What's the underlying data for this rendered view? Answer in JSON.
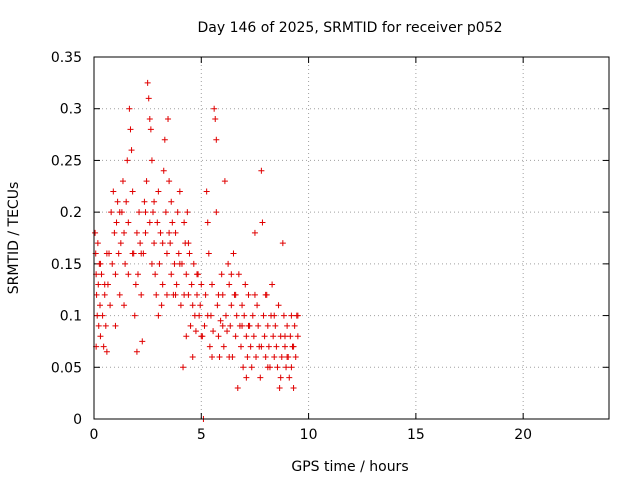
{
  "chart_data": {
    "type": "scatter",
    "title": "Day 146 of 2025, SRMTID for receiver p052",
    "xlabel": "GPS time / hours",
    "ylabel": "SRMTID / TECUs",
    "xlim": [
      0,
      24
    ],
    "ylim": [
      0,
      0.35
    ],
    "xticks": [
      0,
      5,
      10,
      15,
      20
    ],
    "yticks": [
      0,
      0.05,
      0.1,
      0.15,
      0.2,
      0.25,
      0.3,
      0.35
    ],
    "xtick_labels": [
      "0",
      "5",
      "10",
      "15",
      "20"
    ],
    "ytick_labels": [
      "0",
      "0.05",
      "0.1",
      "0.15",
      "0.2",
      "0.25",
      "0.3",
      "0.35"
    ],
    "grid": true,
    "color": "#e00000",
    "marker": "plus",
    "points": [
      [
        0.05,
        0.18
      ],
      [
        0.08,
        0.16
      ],
      [
        0.1,
        0.14
      ],
      [
        0.12,
        0.12
      ],
      [
        0.15,
        0.1
      ],
      [
        0.18,
        0.17
      ],
      [
        0.2,
        0.13
      ],
      [
        0.22,
        0.09
      ],
      [
        0.25,
        0.15
      ],
      [
        0.28,
        0.11
      ],
      [
        0.3,
        0.08
      ],
      [
        0.35,
        0.14
      ],
      [
        0.4,
        0.1
      ],
      [
        0.45,
        0.07
      ],
      [
        0.5,
        0.12
      ],
      [
        0.55,
        0.09
      ],
      [
        0.6,
        0.065
      ],
      [
        0.65,
        0.13
      ],
      [
        0.7,
        0.16
      ],
      [
        0.75,
        0.11
      ],
      [
        0.8,
        0.2
      ],
      [
        0.85,
        0.15
      ],
      [
        0.9,
        0.22
      ],
      [
        0.95,
        0.18
      ],
      [
        1.0,
        0.14
      ],
      [
        1.05,
        0.19
      ],
      [
        1.1,
        0.21
      ],
      [
        1.15,
        0.16
      ],
      [
        1.2,
        0.12
      ],
      [
        1.25,
        0.17
      ],
      [
        1.3,
        0.2
      ],
      [
        1.35,
        0.23
      ],
      [
        1.4,
        0.18
      ],
      [
        1.45,
        0.15
      ],
      [
        1.5,
        0.21
      ],
      [
        1.55,
        0.25
      ],
      [
        1.6,
        0.19
      ],
      [
        1.65,
        0.3
      ],
      [
        1.7,
        0.28
      ],
      [
        1.75,
        0.26
      ],
      [
        1.8,
        0.22
      ],
      [
        1.85,
        0.16
      ],
      [
        1.9,
        0.1
      ],
      [
        1.95,
        0.13
      ],
      [
        2.0,
        0.18
      ],
      [
        2.05,
        0.14
      ],
      [
        2.1,
        0.2
      ],
      [
        2.15,
        0.17
      ],
      [
        2.2,
        0.12
      ],
      [
        2.25,
        0.075
      ],
      [
        2.3,
        0.16
      ],
      [
        2.35,
        0.21
      ],
      [
        2.4,
        0.18
      ],
      [
        2.45,
        0.23
      ],
      [
        2.5,
        0.325
      ],
      [
        2.55,
        0.31
      ],
      [
        2.6,
        0.29
      ],
      [
        2.65,
        0.28
      ],
      [
        2.7,
        0.25
      ],
      [
        2.75,
        0.2
      ],
      [
        2.8,
        0.17
      ],
      [
        2.85,
        0.14
      ],
      [
        2.9,
        0.12
      ],
      [
        2.95,
        0.19
      ],
      [
        3.0,
        0.22
      ],
      [
        3.05,
        0.15
      ],
      [
        3.1,
        0.18
      ],
      [
        3.15,
        0.11
      ],
      [
        3.2,
        0.13
      ],
      [
        3.25,
        0.24
      ],
      [
        3.3,
        0.27
      ],
      [
        3.35,
        0.2
      ],
      [
        3.4,
        0.16
      ],
      [
        3.45,
        0.29
      ],
      [
        3.5,
        0.23
      ],
      [
        3.55,
        0.17
      ],
      [
        3.6,
        0.14
      ],
      [
        3.65,
        0.19
      ],
      [
        3.7,
        0.12
      ],
      [
        3.75,
        0.15
      ],
      [
        3.8,
        0.18
      ],
      [
        3.85,
        0.13
      ],
      [
        3.9,
        0.2
      ],
      [
        3.95,
        0.16
      ],
      [
        4.0,
        0.22
      ],
      [
        4.05,
        0.11
      ],
      [
        4.1,
        0.15
      ],
      [
        4.15,
        0.05
      ],
      [
        4.2,
        0.19
      ],
      [
        4.25,
        0.17
      ],
      [
        4.3,
        0.14
      ],
      [
        4.35,
        0.2
      ],
      [
        4.4,
        0.12
      ],
      [
        4.45,
        0.16
      ],
      [
        4.5,
        0.09
      ],
      [
        4.55,
        0.13
      ],
      [
        4.6,
        0.11
      ],
      [
        4.65,
        0.15
      ],
      [
        4.7,
        0.1
      ],
      [
        4.75,
        0.085
      ],
      [
        4.8,
        0.12
      ],
      [
        4.85,
        0.14
      ],
      [
        4.9,
        0.1
      ],
      [
        4.95,
        0.11
      ],
      [
        5.0,
        0.13
      ],
      [
        5.05,
        0.08
      ],
      [
        5.1,
        0.0
      ],
      [
        5.15,
        0.09
      ],
      [
        5.2,
        0.12
      ],
      [
        5.25,
        0.22
      ],
      [
        5.3,
        0.19
      ],
      [
        5.35,
        0.16
      ],
      [
        5.4,
        0.07
      ],
      [
        5.45,
        0.1
      ],
      [
        5.5,
        0.13
      ],
      [
        5.55,
        0.085
      ],
      [
        5.6,
        0.3
      ],
      [
        5.65,
        0.29
      ],
      [
        5.7,
        0.27
      ],
      [
        5.75,
        0.11
      ],
      [
        5.8,
        0.08
      ],
      [
        5.85,
        0.06
      ],
      [
        5.9,
        0.095
      ],
      [
        5.95,
        0.14
      ],
      [
        6.0,
        0.12
      ],
      [
        6.05,
        0.07
      ],
      [
        6.1,
        0.23
      ],
      [
        6.15,
        0.1
      ],
      [
        6.2,
        0.085
      ],
      [
        6.25,
        0.15
      ],
      [
        6.3,
        0.13
      ],
      [
        6.35,
        0.09
      ],
      [
        6.4,
        0.11
      ],
      [
        6.45,
        0.06
      ],
      [
        6.5,
        0.16
      ],
      [
        6.55,
        0.12
      ],
      [
        6.6,
        0.08
      ],
      [
        6.65,
        0.1
      ],
      [
        6.7,
        0.03
      ],
      [
        6.75,
        0.14
      ],
      [
        6.8,
        0.09
      ],
      [
        6.85,
        0.07
      ],
      [
        6.9,
        0.11
      ],
      [
        6.95,
        0.05
      ],
      [
        7.0,
        0.1
      ],
      [
        7.05,
        0.13
      ],
      [
        7.1,
        0.08
      ],
      [
        7.15,
        0.06
      ],
      [
        7.2,
        0.12
      ],
      [
        7.25,
        0.09
      ],
      [
        7.3,
        0.07
      ],
      [
        7.35,
        0.05
      ],
      [
        7.4,
        0.1
      ],
      [
        7.45,
        0.08
      ],
      [
        7.5,
        0.18
      ],
      [
        7.55,
        0.06
      ],
      [
        7.6,
        0.11
      ],
      [
        7.65,
        0.09
      ],
      [
        7.7,
        0.07
      ],
      [
        7.75,
        0.04
      ],
      [
        7.8,
        0.24
      ],
      [
        7.85,
        0.19
      ],
      [
        7.9,
        0.1
      ],
      [
        7.95,
        0.08
      ],
      [
        8.0,
        0.06
      ],
      [
        8.05,
        0.12
      ],
      [
        8.1,
        0.09
      ],
      [
        8.15,
        0.07
      ],
      [
        8.2,
        0.05
      ],
      [
        8.25,
        0.1
      ],
      [
        8.3,
        0.13
      ],
      [
        8.35,
        0.08
      ],
      [
        8.4,
        0.06
      ],
      [
        8.45,
        0.09
      ],
      [
        8.5,
        0.07
      ],
      [
        8.55,
        0.05
      ],
      [
        8.6,
        0.11
      ],
      [
        8.65,
        0.03
      ],
      [
        8.7,
        0.08
      ],
      [
        8.75,
        0.06
      ],
      [
        8.8,
        0.17
      ],
      [
        8.85,
        0.1
      ],
      [
        8.9,
        0.07
      ],
      [
        8.95,
        0.05
      ],
      [
        9.0,
        0.09
      ],
      [
        9.05,
        0.06
      ],
      [
        9.1,
        0.04
      ],
      [
        9.15,
        0.08
      ],
      [
        9.2,
        0.1
      ],
      [
        9.25,
        0.07
      ],
      [
        9.3,
        0.03
      ],
      [
        9.35,
        0.09
      ],
      [
        9.4,
        0.06
      ],
      [
        9.45,
        0.1
      ],
      [
        9.5,
        0.08
      ],
      [
        0.1,
        0.07
      ],
      [
        0.3,
        0.15
      ],
      [
        0.6,
        0.16
      ],
      [
        1.0,
        0.09
      ],
      [
        1.2,
        0.2
      ],
      [
        1.4,
        0.11
      ],
      [
        1.6,
        0.14
      ],
      [
        2.0,
        0.065
      ],
      [
        2.2,
        0.16
      ],
      [
        2.4,
        0.2
      ],
      [
        2.6,
        0.19
      ],
      [
        2.8,
        0.21
      ],
      [
        3.0,
        0.1
      ],
      [
        3.2,
        0.17
      ],
      [
        3.4,
        0.12
      ],
      [
        3.6,
        0.21
      ],
      [
        3.8,
        0.12
      ],
      [
        4.0,
        0.15
      ],
      [
        4.2,
        0.12
      ],
      [
        4.4,
        0.17
      ],
      [
        4.6,
        0.06
      ],
      [
        4.8,
        0.14
      ],
      [
        5.0,
        0.08
      ],
      [
        5.3,
        0.1
      ],
      [
        5.5,
        0.06
      ],
      [
        5.8,
        0.12
      ],
      [
        6.0,
        0.09
      ],
      [
        6.3,
        0.06
      ],
      [
        6.6,
        0.12
      ],
      [
        6.9,
        0.09
      ],
      [
        7.2,
        0.09
      ],
      [
        7.5,
        0.12
      ],
      [
        7.8,
        0.07
      ],
      [
        8.1,
        0.05
      ],
      [
        8.4,
        0.1
      ],
      [
        8.7,
        0.04
      ],
      [
        9.0,
        0.06
      ],
      [
        9.3,
        0.07
      ],
      [
        9.5,
        0.1
      ],
      [
        1.8,
        0.16
      ],
      [
        2.7,
        0.15
      ],
      [
        3.5,
        0.18
      ],
      [
        4.3,
        0.08
      ],
      [
        5.7,
        0.2
      ],
      [
        6.4,
        0.14
      ],
      [
        7.1,
        0.04
      ],
      [
        8.0,
        0.12
      ],
      [
        8.9,
        0.08
      ],
      [
        9.2,
        0.05
      ],
      [
        0.5,
        0.13
      ]
    ]
  }
}
